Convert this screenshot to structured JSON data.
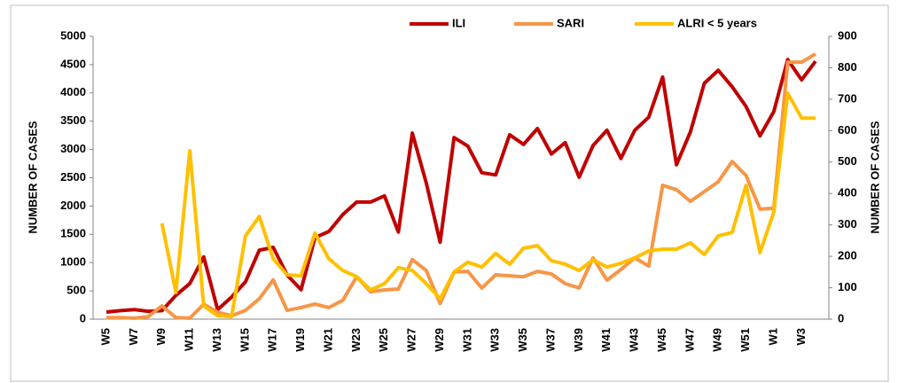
{
  "chart_data": {
    "type": "line",
    "categories": [
      "W5",
      null,
      "W7",
      null,
      "W9",
      null,
      "W11",
      null,
      "W13",
      null,
      "W15",
      null,
      "W17",
      null,
      "W19",
      null,
      "W21",
      null,
      "W23",
      null,
      "W25",
      null,
      "W27",
      null,
      "W29",
      null,
      "W31",
      null,
      "W33",
      null,
      "W35",
      null,
      "W37",
      null,
      "W39",
      null,
      "W41",
      null,
      "W43",
      null,
      "W45",
      null,
      "W47",
      null,
      "W49",
      null,
      "W51",
      null,
      "W1",
      null,
      "W3",
      null
    ],
    "series": [
      {
        "name": "ILI",
        "color": "#c00000",
        "values": [
          125,
          150,
          170,
          140,
          150,
          420,
          630,
          1100,
          170,
          390,
          660,
          1220,
          1270,
          780,
          520,
          1440,
          1550,
          1850,
          2070,
          2070,
          2180,
          1540,
          3290,
          2410,
          1360,
          3210,
          3060,
          2590,
          2550,
          3260,
          3090,
          3370,
          2920,
          3120,
          2510,
          3070,
          3340,
          2840,
          3340,
          3570,
          4280,
          2730,
          3310,
          4170,
          4400,
          4110,
          3760,
          3240,
          3670,
          4590,
          4230,
          4560
        ]
      },
      {
        "name": "SARI",
        "color": "#f79646",
        "axis": "y2",
        "values": [
          5,
          5,
          3,
          8,
          42,
          5,
          3,
          48,
          22,
          11,
          28,
          65,
          125,
          28,
          37,
          48,
          37,
          60,
          135,
          87,
          93,
          96,
          190,
          155,
          50,
          150,
          152,
          99,
          141,
          138,
          135,
          152,
          144,
          113,
          99,
          195,
          124,
          158,
          195,
          169,
          426,
          412,
          375,
          406,
          437,
          502,
          457,
          350,
          353,
          818,
          818,
          844
        ]
      },
      {
        "name": "ALRI < 5 years",
        "color": "#ffc000",
        "axis": "y2",
        "values": [
          null,
          null,
          null,
          null,
          305,
          85,
          536,
          42,
          11,
          8,
          265,
          327,
          192,
          141,
          138,
          274,
          192,
          155,
          135,
          93,
          113,
          164,
          155,
          113,
          65,
          150,
          181,
          166,
          209,
          175,
          226,
          234,
          186,
          175,
          155,
          189,
          166,
          178,
          195,
          217,
          223,
          223,
          243,
          206,
          265,
          276,
          426,
          212,
          341,
          719,
          640,
          640
        ]
      }
    ],
    "y_label": "NUMBER OF CASES",
    "y2_label": "NUMBER OF CASES",
    "ylim": [
      0,
      5000
    ],
    "yticks": [
      0,
      500,
      1000,
      1500,
      2000,
      2500,
      3000,
      3500,
      4000,
      4500,
      5000
    ],
    "y2lim": [
      0,
      900
    ],
    "y2ticks": [
      0,
      100,
      200,
      300,
      400,
      500,
      600,
      700,
      800,
      900
    ],
    "legend": "top"
  }
}
